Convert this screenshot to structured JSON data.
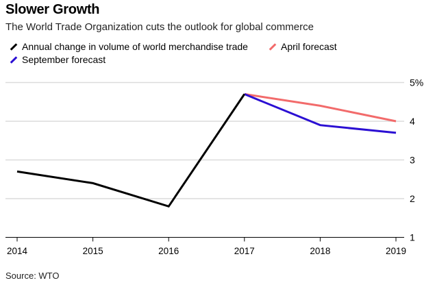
{
  "title": "Slower Growth",
  "subtitle": "The World Trade Organization cuts the outlook for global commerce",
  "source": "Source: WTO",
  "chart_data": {
    "type": "line",
    "title": "Slower Growth",
    "subtitle": "The World Trade Organization cuts the outlook for global commerce",
    "x": [
      2014,
      2015,
      2016,
      2017,
      2018,
      2019
    ],
    "x_tick_labels": [
      "2014",
      "2015",
      "2016",
      "2017",
      "2018",
      "2019"
    ],
    "y_tick_labels": [
      "5%",
      "4",
      "3",
      "2",
      "1"
    ],
    "y_ticks": [
      5,
      4,
      3,
      2,
      1
    ],
    "ylim": [
      1,
      5
    ],
    "y_axis_side": "right",
    "grid": true,
    "legend_placement": "top-left",
    "series": [
      {
        "name": "Annual change in volume of world merchandise trade",
        "color": "#000000",
        "x": [
          2014,
          2015,
          2016,
          2017
        ],
        "values": [
          2.7,
          2.4,
          1.8,
          4.7
        ]
      },
      {
        "name": "April forecast",
        "color": "#f26b6b",
        "x": [
          2017,
          2018,
          2019
        ],
        "values": [
          4.7,
          4.4,
          4.0
        ]
      },
      {
        "name": "September forecast",
        "color": "#2b0fd3",
        "x": [
          2017,
          2018,
          2019
        ],
        "values": [
          4.7,
          3.9,
          3.7
        ]
      }
    ]
  }
}
